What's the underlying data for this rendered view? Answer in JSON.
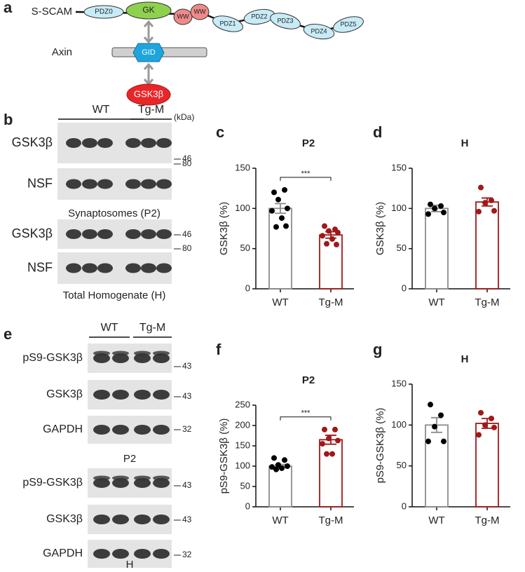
{
  "panel_labels": [
    "a",
    "b",
    "c",
    "d",
    "e",
    "f",
    "g"
  ],
  "diagram": {
    "protein": "S-SCAM",
    "domains": [
      "PDZ0",
      "GK",
      "WW",
      "WW",
      "PDZ1",
      "PDZ2",
      "PDZ3",
      "PDZ4",
      "PDZ5"
    ],
    "partner": "Axin",
    "partner_domain": "GID",
    "kinase": "GSK3β"
  },
  "blot_b": {
    "groups": [
      "WT",
      "Tg-M"
    ],
    "unit": "(kDa)",
    "sections": [
      {
        "rows": [
          {
            "label": "GSK3β",
            "marker": 46
          },
          {
            "label": "NSF",
            "marker": 80
          }
        ],
        "caption": "Synaptosomes (P2)"
      },
      {
        "rows": [
          {
            "label": "GSK3β",
            "marker": 46
          },
          {
            "label": "NSF",
            "marker": 80
          }
        ],
        "caption": "Total Homogenate (H)"
      }
    ]
  },
  "blot_e": {
    "groups": [
      "WT",
      "Tg-M"
    ],
    "sections": [
      {
        "rows": [
          {
            "label": "pS9-GSK3β",
            "marker": 43
          },
          {
            "label": "GSK3β",
            "marker": 43
          },
          {
            "label": "GAPDH",
            "marker": 32
          }
        ],
        "caption": "P2"
      },
      {
        "rows": [
          {
            "label": "pS9-GSK3β",
            "marker": 43
          },
          {
            "label": "GSK3β",
            "marker": 43
          },
          {
            "label": "GAPDH",
            "marker": 32
          }
        ],
        "caption": "H"
      }
    ]
  },
  "chart_data": [
    {
      "type": "bar",
      "title": "P2",
      "y_label": "GSK3β (%)",
      "categories": [
        "WT",
        "Tg-M"
      ],
      "values": [
        100,
        67
      ],
      "errors": [
        6,
        4
      ],
      "points": [
        [
          120,
          123,
          111,
          100,
          97,
          88,
          77,
          78
        ],
        [
          78,
          74,
          72,
          70,
          66,
          62,
          56,
          55
        ]
      ],
      "colors": [
        "#8c8c8c",
        "#a01818"
      ],
      "point_colors": [
        "#000000",
        "#a01818"
      ],
      "ylim": [
        0,
        150
      ],
      "yticks": [
        0,
        50,
        100,
        150
      ],
      "annotation": "***"
    },
    {
      "type": "bar",
      "title": "H",
      "y_label": "GSK3β (%)",
      "categories": [
        "WT",
        "Tg-M"
      ],
      "values": [
        100,
        108
      ],
      "errors": [
        4,
        5
      ],
      "points": [
        [
          105,
          103,
          100,
          95,
          93
        ],
        [
          126,
          110,
          107,
          97,
          96
        ]
      ],
      "colors": [
        "#8c8c8c",
        "#a01818"
      ],
      "point_colors": [
        "#000000",
        "#a01818"
      ],
      "ylim": [
        0,
        150
      ],
      "yticks": [
        0,
        50,
        100,
        150
      ]
    },
    {
      "type": "bar",
      "title": "P2",
      "y_label": "pS9-GSK3β (%)",
      "categories": [
        "WT",
        "Tg-M"
      ],
      "values": [
        100,
        165
      ],
      "errors": [
        4,
        11
      ],
      "points": [
        [
          120,
          115,
          103,
          100,
          98,
          95,
          92
        ],
        [
          190,
          190,
          168,
          163,
          155,
          130,
          130
        ]
      ],
      "colors": [
        "#8c8c8c",
        "#a01818"
      ],
      "point_colors": [
        "#000000",
        "#a01818"
      ],
      "ylim": [
        0,
        250
      ],
      "yticks": [
        0,
        50,
        100,
        150,
        200,
        250
      ],
      "annotation": "***"
    },
    {
      "type": "bar",
      "title": "H",
      "y_label": "pS9-GSK3β (%)",
      "categories": [
        "WT",
        "Tg-M"
      ],
      "values": [
        100,
        102
      ],
      "errors": [
        9,
        6
      ],
      "points": [
        [
          125,
          112,
          98,
          80,
          80
        ],
        [
          115,
          108,
          100,
          97,
          88
        ]
      ],
      "colors": [
        "#8c8c8c",
        "#a01818"
      ],
      "point_colors": [
        "#000000",
        "#a01818"
      ],
      "ylim": [
        0,
        150
      ],
      "yticks": [
        0,
        50,
        100,
        150
      ]
    }
  ]
}
